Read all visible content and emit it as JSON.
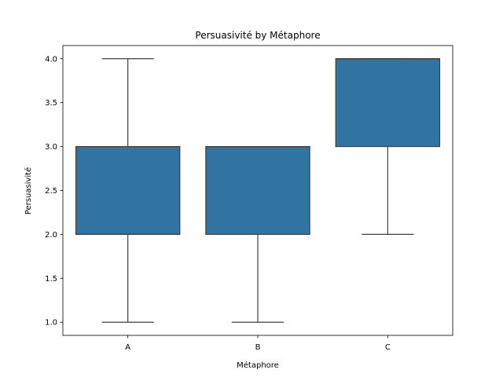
{
  "chart_data": {
    "type": "box",
    "title": "Persuasivité by Métaphore",
    "xlabel": "Métaphore",
    "ylabel": "Persuasivité",
    "categories": [
      "A",
      "B",
      "C"
    ],
    "boxes": [
      {
        "category": "A",
        "whisker_low": 1.0,
        "q1": 2.0,
        "median": 2.0,
        "q3": 3.0,
        "whisker_high": 4.0
      },
      {
        "category": "B",
        "whisker_low": 1.0,
        "q1": 2.0,
        "median": 3.0,
        "q3": 3.0,
        "whisker_high": 3.0
      },
      {
        "category": "C",
        "whisker_low": 2.0,
        "q1": 3.0,
        "median": 4.0,
        "q3": 4.0,
        "whisker_high": 4.0
      }
    ],
    "ylim": [
      0.85,
      4.15
    ],
    "yticks": [
      "1.0",
      "1.5",
      "2.0",
      "2.5",
      "3.0",
      "3.5",
      "4.0"
    ],
    "box_color": "#3274a1",
    "line_color": "#3f3f3f",
    "grid": false,
    "legend": "none"
  }
}
